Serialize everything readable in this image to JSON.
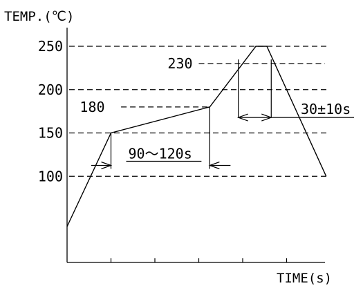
{
  "chart_data": {
    "type": "line",
    "title": "",
    "ylabel": "TEMP.(℃)",
    "xlabel": "TIME(s)",
    "y_ticks": [
      100,
      150,
      200,
      250
    ],
    "x_ticks_unlabeled": 5,
    "series": [
      {
        "points": [
          {
            "t": 0,
            "temp": 42
          },
          {
            "t": 1,
            "temp": 150
          },
          {
            "t": 3.25,
            "temp": 180
          },
          {
            "t": 4.3,
            "temp": 250
          },
          {
            "t": 4.55,
            "temp": 250
          },
          {
            "t": 5.9,
            "temp": 100
          }
        ]
      }
    ],
    "annotations": [
      {
        "text": "230",
        "value": 230
      },
      {
        "text": "180",
        "value": 180
      },
      {
        "text": "90～120s",
        "kind": "duration",
        "from_t": 1,
        "to_t": 3.25,
        "at_temp": 150
      },
      {
        "text": "30±10s",
        "kind": "duration",
        "from_t": 3.9,
        "to_t": 4.65,
        "at_temp": 230
      }
    ]
  }
}
